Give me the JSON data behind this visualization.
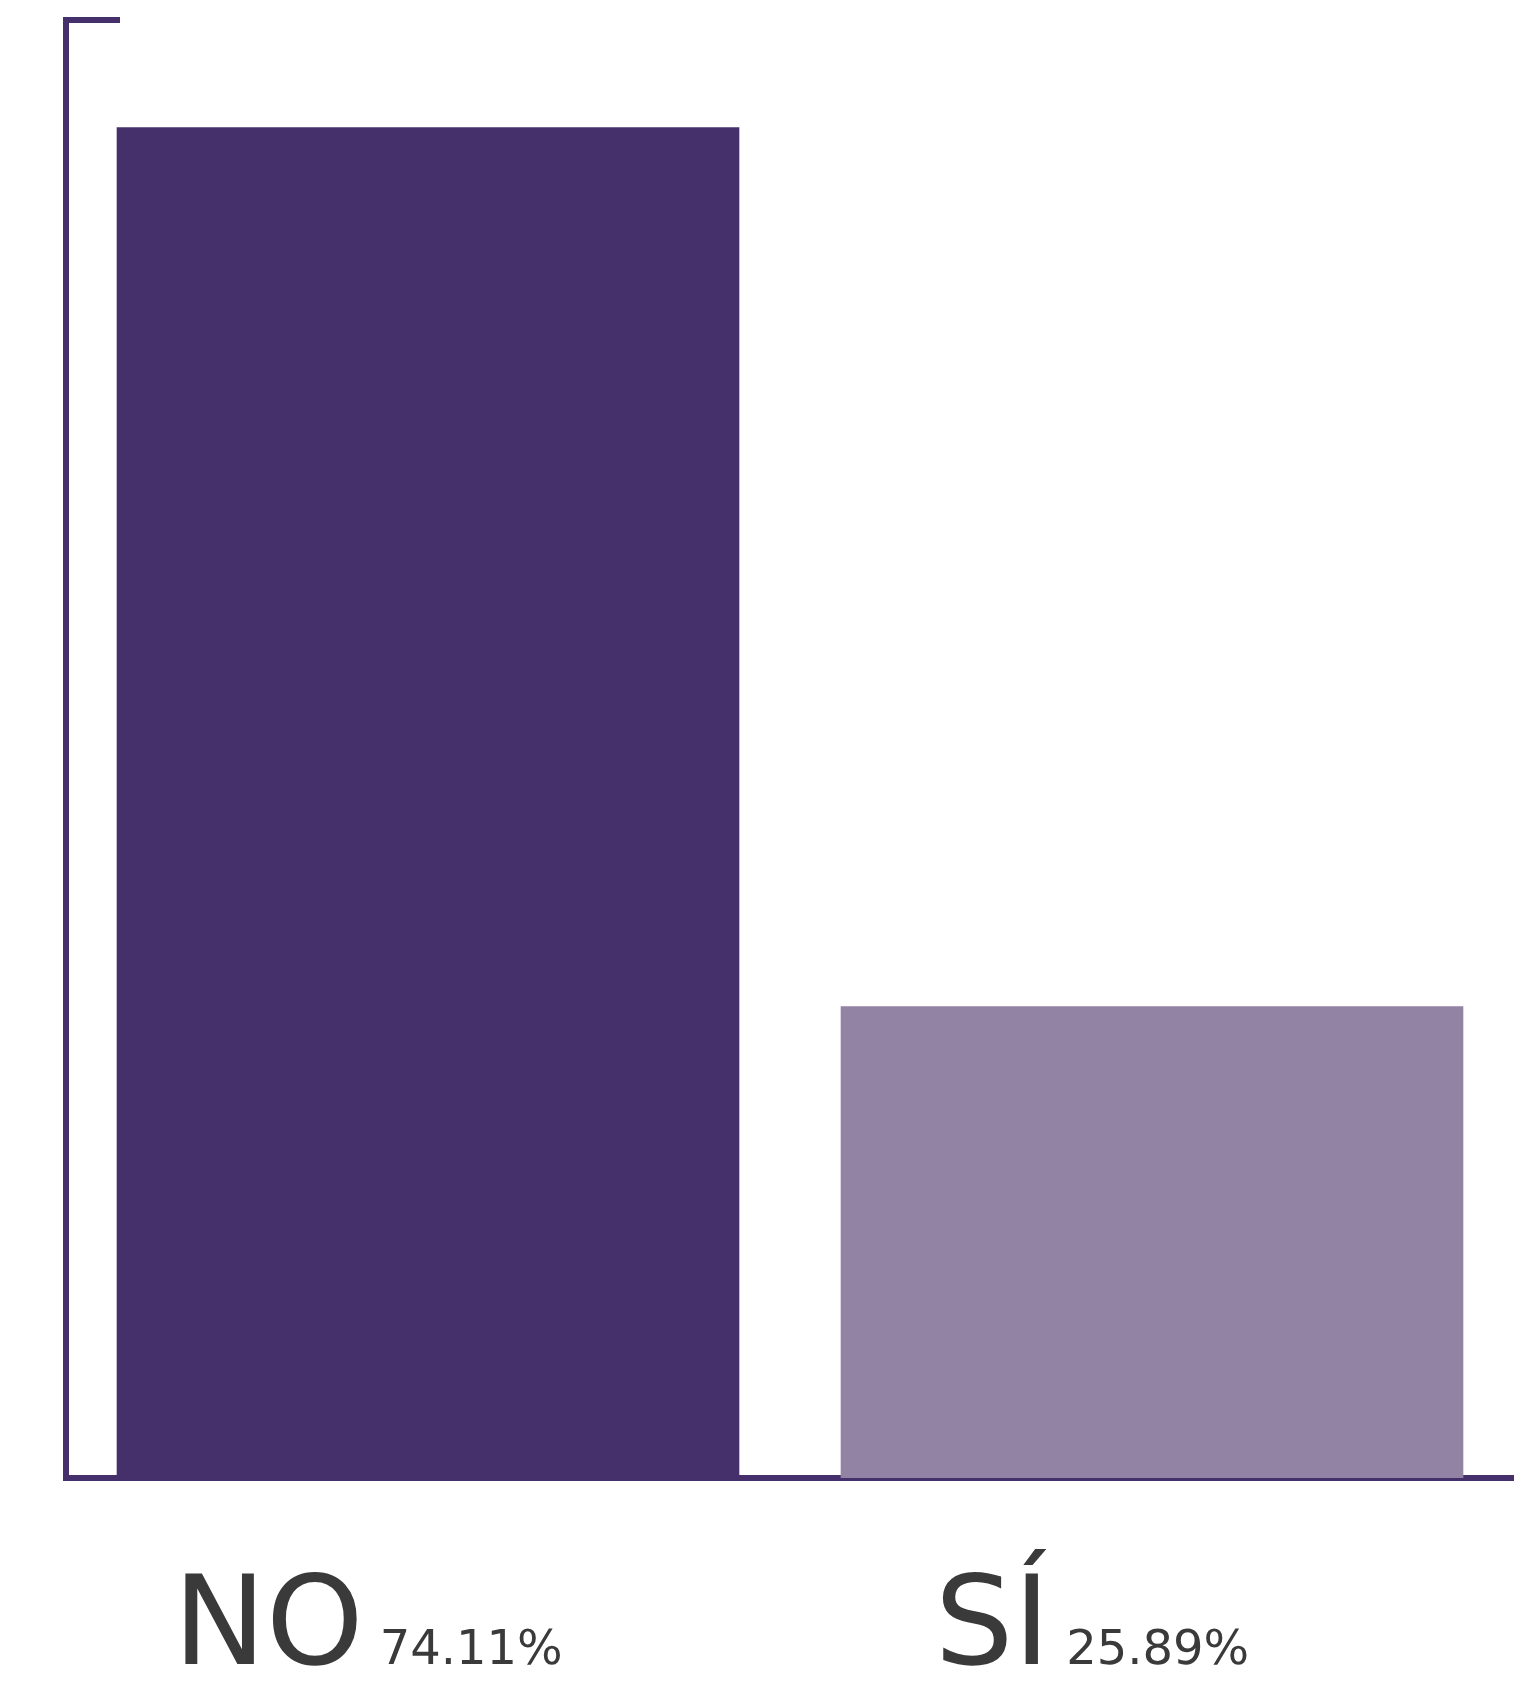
{
  "chart_data": {
    "type": "bar",
    "categories": [
      "NO",
      "SÍ"
    ],
    "values": [
      74.11,
      25.89
    ],
    "colors": [
      "#45306b",
      "#9282a3"
    ],
    "value_labels": [
      "74.11%",
      "25.89%"
    ],
    "tick_labels": "x",
    "grid": false,
    "legend": false
  }
}
